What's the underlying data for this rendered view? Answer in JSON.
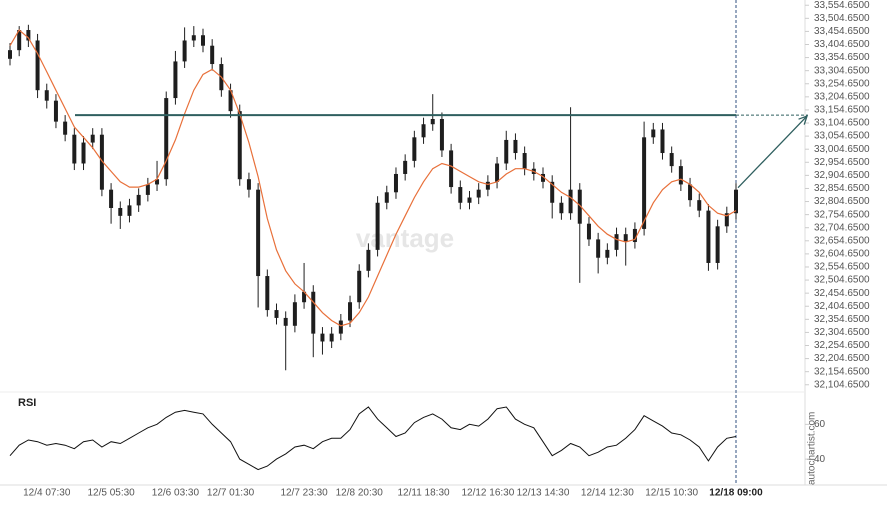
{
  "chart_data": [
    {
      "type": "candlestick",
      "categories": [
        null,
        null,
        null,
        null,
        "12/4 07:30",
        null,
        null,
        null,
        null,
        null,
        null,
        "12/5 05:30",
        null,
        null,
        null,
        null,
        null,
        null,
        "12/6 03:30",
        null,
        null,
        null,
        null,
        null,
        "12/7 01:30",
        null,
        null,
        null,
        null,
        null,
        null,
        null,
        "12/7 23:30",
        null,
        null,
        null,
        null,
        null,
        "12/8 20:30",
        null,
        null,
        null,
        null,
        null,
        null,
        "12/11 18:30",
        null,
        null,
        null,
        null,
        null,
        null,
        "12/12 16:30",
        null,
        null,
        null,
        null,
        null,
        "12/13 14:30",
        null,
        null,
        null,
        null,
        null,
        null,
        "12/14 12:30",
        null,
        null,
        null,
        null,
        null,
        null,
        "12/15 10:30",
        null,
        null,
        null,
        null,
        null,
        null,
        "12/18 09:00"
      ],
      "open": [
        33350,
        33383,
        33460,
        33420,
        33230,
        33190,
        33110,
        33060,
        32950,
        33030,
        33060,
        32850,
        32780,
        32750,
        32790,
        32830,
        32870,
        32890,
        33200,
        33340,
        33420,
        33440,
        33400,
        33330,
        33230,
        33150,
        32890,
        32850,
        32520,
        32390,
        32360,
        32330,
        32420,
        32460,
        32300,
        32270,
        32300,
        32350,
        32420,
        32540,
        32620,
        32800,
        32840,
        32910,
        32960,
        33050,
        33100,
        33120,
        33000,
        32860,
        32800,
        32820,
        32850,
        32880,
        32950,
        33040,
        32990,
        32930,
        32910,
        32880,
        32800,
        32760,
        32850,
        32720,
        32660,
        32590,
        32620,
        32680,
        32650,
        32700,
        33050,
        33080,
        32990,
        32940,
        32870,
        32810,
        32770,
        32570,
        32710,
        32760
      ],
      "high": [
        33410,
        33475,
        33480,
        33445,
        33255,
        33215,
        33135,
        33085,
        33055,
        33085,
        33085,
        32875,
        32805,
        32815,
        32855,
        32895,
        32960,
        33225,
        33380,
        33470,
        33475,
        33465,
        33425,
        33355,
        33255,
        33175,
        32915,
        32875,
        32545,
        32415,
        32385,
        32450,
        32570,
        32485,
        32325,
        32325,
        32375,
        32445,
        32565,
        32645,
        32825,
        32865,
        32935,
        32985,
        33075,
        33125,
        33215,
        33145,
        33025,
        32885,
        32845,
        32875,
        32905,
        32975,
        33075,
        33065,
        33015,
        32955,
        32935,
        32905,
        32825,
        33165,
        32875,
        32745,
        32685,
        32645,
        32705,
        32705,
        32725,
        33110,
        33105,
        33105,
        33015,
        32965,
        32895,
        32835,
        32795,
        32735,
        32785,
        32875
      ],
      "low": [
        33325,
        33360,
        33395,
        33200,
        33160,
        33085,
        33035,
        32925,
        32925,
        33005,
        32825,
        32720,
        32700,
        32725,
        32765,
        32805,
        32845,
        32865,
        33175,
        33315,
        33395,
        33375,
        33305,
        33205,
        33125,
        32865,
        32820,
        32400,
        32365,
        32335,
        32160,
        32305,
        32395,
        32210,
        32220,
        32245,
        32275,
        32325,
        32395,
        32515,
        32595,
        32775,
        32815,
        32885,
        32935,
        33025,
        33075,
        32975,
        32835,
        32775,
        32775,
        32795,
        32825,
        32855,
        32925,
        32965,
        32905,
        32885,
        32855,
        32740,
        32735,
        32735,
        32494,
        32635,
        32530,
        32565,
        32595,
        32560,
        32625,
        32675,
        33025,
        32965,
        32915,
        32845,
        32785,
        32745,
        32540,
        32545,
        32685,
        32735
      ],
      "close": [
        33383,
        33460,
        33420,
        33230,
        33190,
        33110,
        33060,
        32950,
        33030,
        33060,
        32850,
        32780,
        32750,
        32790,
        32830,
        32870,
        32890,
        33200,
        33340,
        33420,
        33440,
        33400,
        33330,
        33230,
        33150,
        32890,
        32850,
        32520,
        32390,
        32360,
        32330,
        32420,
        32460,
        32300,
        32270,
        32300,
        32350,
        32420,
        32540,
        32620,
        32800,
        32840,
        32910,
        32960,
        33050,
        33100,
        33120,
        33000,
        32860,
        32800,
        32820,
        32850,
        32880,
        32950,
        33040,
        32990,
        32930,
        32910,
        32880,
        32800,
        32760,
        32850,
        32720,
        32660,
        32590,
        32620,
        32680,
        32650,
        32700,
        33050,
        33080,
        32990,
        32940,
        32870,
        32810,
        32770,
        32570,
        32710,
        32760,
        32850
      ],
      "candle_color": "#1e1e1e",
      "moving_average": {
        "color": "#e8703a",
        "values": [
          33400,
          33460,
          33430,
          33370,
          33300,
          33230,
          33160,
          33090,
          33050,
          33010,
          32960,
          32920,
          32880,
          32860,
          32860,
          32870,
          32890,
          32960,
          33040,
          33140,
          33230,
          33290,
          33310,
          33280,
          33230,
          33140,
          33030,
          32900,
          32740,
          32620,
          32540,
          32490,
          32460,
          32420,
          32380,
          32350,
          32330,
          32340,
          32380,
          32440,
          32520,
          32600,
          32680,
          32750,
          32820,
          32880,
          32930,
          32950,
          32940,
          32920,
          32900,
          32880,
          32870,
          32880,
          32910,
          32930,
          32930,
          32920,
          32900,
          32870,
          32840,
          32820,
          32790,
          32750,
          32710,
          32680,
          32660,
          32650,
          32660,
          32730,
          32800,
          32850,
          32880,
          32890,
          32870,
          32840,
          32790,
          32760,
          32750,
          32770
        ]
      },
      "resistance": {
        "value": 33135,
        "color": "#2f5f5f"
      },
      "ylim": [
        32084.65,
        33574.65
      ],
      "yticks": [
        {
          "value": 33554.65,
          "label": "33,554.6500"
        },
        {
          "value": 33504.65,
          "label": "33,504.6500"
        },
        {
          "value": 33454.65,
          "label": "33,454.6500"
        },
        {
          "value": 33404.65,
          "label": "33,404.6500"
        },
        {
          "value": 33354.65,
          "label": "33,354.6500"
        },
        {
          "value": 33304.65,
          "label": "33,304.6500"
        },
        {
          "value": 33254.65,
          "label": "33,254.6500"
        },
        {
          "value": 33204.65,
          "label": "33,204.6500"
        },
        {
          "value": 33154.65,
          "label": "33,154.6500"
        },
        {
          "value": 33104.65,
          "label": "33,104.6500"
        },
        {
          "value": 33054.65,
          "label": "33,054.6500"
        },
        {
          "value": 33004.65,
          "label": "33,004.6500"
        },
        {
          "value": 32954.65,
          "label": "32,954.6500"
        },
        {
          "value": 32904.65,
          "label": "32,904.6500"
        },
        {
          "value": 32854.65,
          "label": "32,854.6500"
        },
        {
          "value": 32804.65,
          "label": "32,804.6500"
        },
        {
          "value": 32754.65,
          "label": "32,754.6500"
        },
        {
          "value": 32704.65,
          "label": "32,704.6500"
        },
        {
          "value": 32654.65,
          "label": "32,654.6500"
        },
        {
          "value": 32604.65,
          "label": "32,604.6500"
        },
        {
          "value": 32554.65,
          "label": "32,554.6500"
        },
        {
          "value": 32504.65,
          "label": "32,504.6500"
        },
        {
          "value": 32454.65,
          "label": "32,454.6500"
        },
        {
          "value": 32404.65,
          "label": "32,404.6500"
        },
        {
          "value": 32354.65,
          "label": "32,354.6500"
        },
        {
          "value": 32304.65,
          "label": "32,304.6500"
        },
        {
          "value": 32254.65,
          "label": "32,254.6500"
        },
        {
          "value": 32204.65,
          "label": "32,204.6500"
        },
        {
          "value": 32154.65,
          "label": "32,154.6500"
        },
        {
          "value": 32104.65,
          "label": "32,104.6500"
        }
      ]
    },
    {
      "type": "line",
      "title": "RSI",
      "color": "#111111",
      "values": [
        42,
        48,
        51,
        50,
        48,
        49,
        48,
        46,
        50,
        51,
        47,
        50,
        49,
        52,
        55,
        58,
        60,
        64,
        67,
        68,
        67,
        66,
        60,
        55,
        50,
        40,
        37,
        34,
        36,
        40,
        43,
        47,
        48,
        46,
        50,
        52,
        52,
        57,
        66,
        70,
        63,
        58,
        53,
        55,
        61,
        64,
        66,
        63,
        58,
        57,
        60,
        59,
        63,
        69,
        70,
        63,
        60,
        58,
        50,
        42,
        45,
        49,
        47,
        42,
        44,
        47,
        48,
        52,
        57,
        65,
        62,
        59,
        55,
        54,
        51,
        47,
        39,
        47,
        52,
        53
      ],
      "ylim": [
        28,
        74
      ],
      "yticks": [
        40,
        60
      ]
    }
  ],
  "watermark": "vantage",
  "source": "autochartist.com"
}
